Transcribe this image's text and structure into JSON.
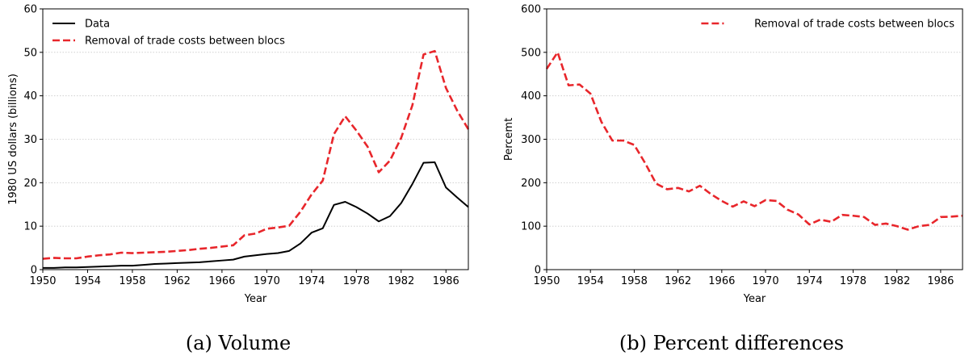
{
  "chart_data": [
    {
      "type": "line",
      "caption": "(a) Volume",
      "xlabel": "Year",
      "ylabel": "1980 US dollars (billions)",
      "xlim": [
        1950,
        1988
      ],
      "ylim": [
        0,
        60
      ],
      "xticks": [
        1950,
        1954,
        1958,
        1962,
        1966,
        1970,
        1974,
        1978,
        1982,
        1986
      ],
      "yticks": [
        0,
        10,
        20,
        30,
        40,
        50,
        60
      ],
      "grid": "horizontal dotted",
      "legend": "top-left",
      "x": [
        1950,
        1951,
        1952,
        1953,
        1954,
        1955,
        1956,
        1957,
        1958,
        1959,
        1960,
        1961,
        1962,
        1963,
        1964,
        1965,
        1966,
        1967,
        1968,
        1969,
        1970,
        1971,
        1972,
        1973,
        1974,
        1975,
        1976,
        1977,
        1978,
        1979,
        1980,
        1981,
        1982,
        1983,
        1984,
        1985,
        1986,
        1987,
        1988
      ],
      "series": [
        {
          "name": "Data",
          "color": "#000000",
          "style": "solid",
          "values": [
            0.4,
            0.4,
            0.5,
            0.5,
            0.6,
            0.7,
            0.8,
            0.9,
            0.9,
            1.1,
            1.3,
            1.4,
            1.5,
            1.6,
            1.7,
            1.9,
            2.1,
            2.3,
            3.0,
            3.3,
            3.6,
            3.8,
            4.3,
            6.0,
            8.5,
            9.5,
            14.9,
            15.6,
            14.4,
            12.9,
            11.1,
            12.3,
            15.3,
            19.7,
            24.6,
            24.7,
            18.9,
            16.6,
            14.4
          ]
        },
        {
          "name": "Removal of trade costs between blocs",
          "color": "#e8262b",
          "style": "dashed",
          "values": [
            2.5,
            2.7,
            2.6,
            2.6,
            3.0,
            3.3,
            3.5,
            3.9,
            3.8,
            3.9,
            4.0,
            4.1,
            4.3,
            4.5,
            4.8,
            5.0,
            5.3,
            5.6,
            7.9,
            8.3,
            9.4,
            9.7,
            10.1,
            13.3,
            17.3,
            20.5,
            31.2,
            35.3,
            32.0,
            28.3,
            22.4,
            25.1,
            30.3,
            37.8,
            49.5,
            50.3,
            41.8,
            36.6,
            32.3
          ]
        }
      ]
    },
    {
      "type": "line",
      "caption": "(b) Percent differences",
      "xlabel": "Year",
      "ylabel": "Percemt",
      "xlim": [
        1950,
        1988
      ],
      "ylim": [
        0,
        600
      ],
      "xticks": [
        1950,
        1954,
        1958,
        1962,
        1966,
        1970,
        1974,
        1978,
        1982,
        1986
      ],
      "yticks": [
        0,
        100,
        200,
        300,
        400,
        500,
        600
      ],
      "grid": "horizontal dotted",
      "legend": "top-right",
      "x": [
        1950,
        1951,
        1952,
        1953,
        1954,
        1955,
        1956,
        1957,
        1958,
        1959,
        1960,
        1961,
        1962,
        1963,
        1964,
        1965,
        1966,
        1967,
        1968,
        1969,
        1970,
        1971,
        1972,
        1973,
        1974,
        1975,
        1976,
        1977,
        1978,
        1979,
        1980,
        1981,
        1982,
        1983,
        1984,
        1985,
        1986,
        1987,
        1988
      ],
      "series": [
        {
          "name": "Removal of trade costs between blocs",
          "color": "#e8262b",
          "style": "dashed",
          "values": [
            462,
            500,
            424,
            426,
            405,
            340,
            297,
            297,
            287,
            245,
            198,
            185,
            188,
            180,
            193,
            174,
            158,
            145,
            157,
            146,
            160,
            158,
            138,
            127,
            104,
            115,
            110,
            126,
            124,
            121,
            103,
            106,
            100,
            92,
            100,
            103,
            121,
            122,
            124
          ]
        }
      ]
    }
  ]
}
